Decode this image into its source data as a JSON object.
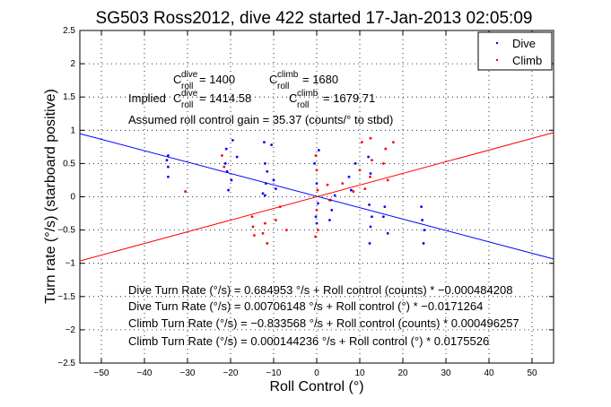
{
  "chart_data": {
    "type": "scatter",
    "title": "SG503 Ross2012, dive 422 started 17-Jan-2013 02:05:09",
    "xlabel": "Roll Control (°)",
    "ylabel": "Turn rate (°/s) (starboard positive)",
    "xlim": [
      -55,
      55
    ],
    "ylim": [
      -2.5,
      2.5
    ],
    "x_ticks": [
      -50,
      -40,
      -30,
      -20,
      -10,
      0,
      10,
      20,
      30,
      40,
      50
    ],
    "y_ticks": [
      -2.5,
      -2,
      -1.5,
      -1,
      -0.5,
      0,
      0.5,
      1,
      1.5,
      2,
      2.5
    ],
    "x_tick_labels": [
      "−50",
      "−40",
      "−30",
      "−20",
      "−10",
      "0",
      "10",
      "20",
      "30",
      "40",
      "50"
    ],
    "y_tick_labels": [
      "−2.5",
      "−2",
      "−1.5",
      "−1",
      "−0.5",
      "0",
      "0.5",
      "1",
      "1.5",
      "2",
      "2.5"
    ],
    "grid": true,
    "legend_position": "top-right",
    "series": [
      {
        "name": "Dive",
        "color": "#0000ff",
        "points": [
          [
            -34.5,
            0.62
          ],
          [
            -34.5,
            0.45
          ],
          [
            -34.5,
            0.3
          ],
          [
            -34.8,
            0.55
          ],
          [
            -21.2,
            0.5
          ],
          [
            -21.0,
            0.72
          ],
          [
            -20.8,
            0.38
          ],
          [
            -20.5,
            0.1
          ],
          [
            -19.5,
            0.85
          ],
          [
            -18.5,
            0.6
          ],
          [
            -19.8,
            0.25
          ],
          [
            -12.2,
            0.82
          ],
          [
            -12.0,
            0.5
          ],
          [
            -11.8,
            0.2
          ],
          [
            -12.0,
            0.02
          ],
          [
            -11.5,
            0.38
          ],
          [
            -10.5,
            0.78
          ],
          [
            -10.0,
            0.25
          ],
          [
            -9.5,
            0.12
          ],
          [
            -12.5,
            0.05
          ],
          [
            -0.5,
            0.5
          ],
          [
            0.0,
            0.2
          ],
          [
            0.3,
            -0.1
          ],
          [
            -0.2,
            -0.3
          ],
          [
            0.5,
            0.7
          ],
          [
            0.0,
            -0.4
          ],
          [
            3.2,
            -0.05
          ],
          [
            3.5,
            -0.2
          ],
          [
            3.0,
            -0.35
          ],
          [
            4.2,
            0.02
          ],
          [
            7.5,
            0.3
          ],
          [
            8.0,
            0.1
          ],
          [
            9.0,
            0.5
          ],
          [
            12.2,
            -0.12
          ],
          [
            12.5,
            -0.45
          ],
          [
            12.3,
            -0.7
          ],
          [
            12.8,
            -0.3
          ],
          [
            12.0,
            0.6
          ],
          [
            12.5,
            0.35
          ],
          [
            15.5,
            -0.3
          ],
          [
            16.5,
            -0.55
          ],
          [
            15.8,
            -0.15
          ],
          [
            24.5,
            -0.35
          ],
          [
            25.0,
            -0.5
          ],
          [
            24.8,
            -0.7
          ],
          [
            24.3,
            -0.15
          ]
        ]
      },
      {
        "name": "Climb",
        "color": "#ff0000",
        "points": [
          [
            -30.5,
            0.08
          ],
          [
            -22.0,
            0.62
          ],
          [
            -21.5,
            0.45
          ],
          [
            -14.8,
            -0.45
          ],
          [
            -14.5,
            -0.58
          ],
          [
            -15.0,
            -0.3
          ],
          [
            -12.5,
            -0.55
          ],
          [
            -12.0,
            -0.4
          ],
          [
            -11.5,
            -0.7
          ],
          [
            -9.5,
            -0.35
          ],
          [
            -8.5,
            -0.15
          ],
          [
            -7.0,
            -0.5
          ],
          [
            -0.2,
            0.62
          ],
          [
            0.0,
            0.4
          ],
          [
            0.2,
            0.1
          ],
          [
            0.0,
            -0.2
          ],
          [
            0.3,
            -0.5
          ],
          [
            -0.3,
            -0.6
          ],
          [
            2.5,
            0.18
          ],
          [
            3.0,
            -0.05
          ],
          [
            6.0,
            0.2
          ],
          [
            8.5,
            0.08
          ],
          [
            10.5,
            0.82
          ],
          [
            10.0,
            0.4
          ],
          [
            11.2,
            0.12
          ],
          [
            12.5,
            0.88
          ],
          [
            12.8,
            0.55
          ],
          [
            12.4,
            0.3
          ],
          [
            15.5,
            0.5
          ],
          [
            16.0,
            0.72
          ],
          [
            16.5,
            0.25
          ],
          [
            17.8,
            0.82
          ]
        ]
      }
    ],
    "fit_lines": [
      {
        "series": "Dive",
        "color": "#0000ff",
        "intercept": 0.00706148,
        "slope": -0.0171264
      },
      {
        "series": "Climb",
        "color": "#ff0000",
        "intercept": 0.000144236,
        "slope": 0.0175526
      }
    ],
    "annotations": {
      "c_roll_dive": {
        "prefix": "C",
        "sup": "dive",
        "sub": "roll",
        "value": " = 1400"
      },
      "c_roll_climb": {
        "prefix": "C",
        "sup": "climb",
        "sub": "roll",
        "value": " = 1680"
      },
      "implied_dive": {
        "lead": "Implied ",
        "prefix": "C",
        "sup": "dive",
        "sub": "roll",
        "value": " = 1414.58"
      },
      "implied_climb": {
        "prefix": "C",
        "sup": "climb",
        "sub": "roll",
        "value": " = 1679.71"
      },
      "gain": "Assumed roll control gain = 35.37 (counts/° to stbd)",
      "equations": [
        "Dive Turn Rate (°/s) = 0.684953 °/s + Roll control (counts) * −0.000484208",
        "Dive Turn Rate (°/s) = 0.00706148 °/s + Roll control (°) * −0.0171264",
        "Climb Turn Rate (°/s) = −0.833568 °/s + Roll control (counts) * 0.000496257",
        "Climb Turn Rate (°/s) = 0.000144236 °/s + Roll control (°) * 0.0175526"
      ]
    }
  }
}
